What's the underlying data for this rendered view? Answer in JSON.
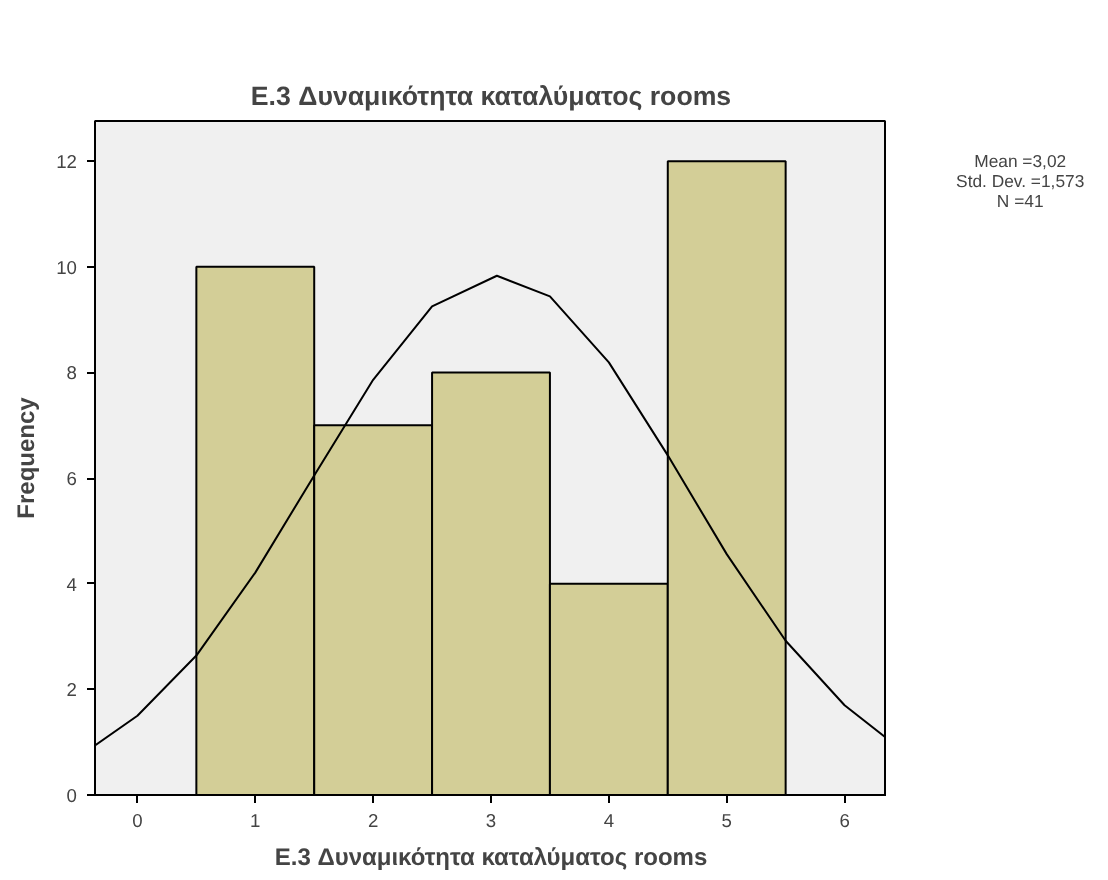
{
  "chart_data": {
    "type": "histogram",
    "title": "E.3 Δυναμικότητα καταλύματος rooms",
    "xlabel": "E.3 Δυναμικότητα καταλύματος rooms",
    "ylabel": "Frequency",
    "bins": [
      0.5,
      1.5,
      2.5,
      3.5,
      4.5,
      5.5
    ],
    "values": [
      10,
      7,
      8,
      4,
      12
    ],
    "color": "#d3ce97",
    "series": [
      {
        "type": "line",
        "color": "#000000",
        "x": [
          -0.36,
          0,
          0.5,
          1,
          1.5,
          2,
          2.5,
          3.05,
          3.5,
          4,
          4.5,
          5,
          5.5,
          6,
          6.36
        ],
        "values": [
          0.94,
          1.5,
          2.64,
          4.21,
          6.05,
          7.86,
          9.25,
          9.83,
          9.44,
          8.19,
          6.43,
          4.56,
          2.92,
          1.7,
          1.07
        ]
      }
    ],
    "xlim": [
      -0.36,
      6.36
    ],
    "ylim": [
      0,
      12.76
    ],
    "xticks": [
      0,
      1,
      2,
      3,
      4,
      5,
      6
    ],
    "yticks": [
      0,
      2,
      4,
      6,
      8,
      10,
      12
    ],
    "grid": false,
    "annotations": [
      "Mean =3,02",
      "Std. Dev. =1,573",
      "N =41"
    ]
  }
}
